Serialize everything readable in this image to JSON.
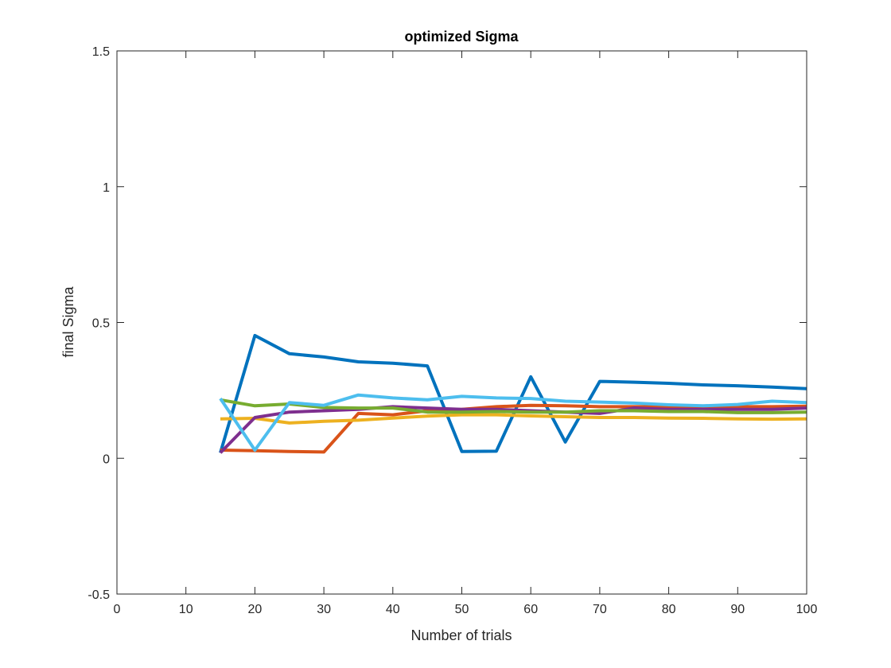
{
  "chart_data": {
    "type": "line",
    "title": "optimized Sigma",
    "xlabel": "Number of trials",
    "ylabel": "final Sigma",
    "xlim": [
      0,
      100
    ],
    "ylim": [
      -0.5,
      1.5
    ],
    "xticks": [
      0,
      10,
      20,
      30,
      40,
      50,
      60,
      70,
      80,
      90,
      100
    ],
    "yticks": [
      -0.5,
      0,
      0.5,
      1,
      1.5
    ],
    "xtick_labels": [
      "0",
      "10",
      "20",
      "30",
      "40",
      "50",
      "60",
      "70",
      "80",
      "90",
      "100"
    ],
    "ytick_labels": [
      "-0.5",
      "0",
      "0.5",
      "1",
      "1.5"
    ],
    "grid": false,
    "x": [
      15,
      20,
      25,
      30,
      35,
      40,
      45,
      50,
      55,
      60,
      65,
      70,
      75,
      80,
      85,
      90,
      95,
      100
    ],
    "series": [
      {
        "color": "#0072BD",
        "values": [
          0.02,
          0.452,
          0.385,
          0.373,
          0.355,
          0.35,
          0.34,
          0.025,
          0.026,
          0.3,
          0.06,
          0.283,
          0.28,
          0.276,
          0.27,
          0.267,
          0.262,
          0.256
        ]
      },
      {
        "color": "#D95319",
        "values": [
          0.03,
          0.028,
          0.025,
          0.023,
          0.165,
          0.16,
          0.175,
          0.18,
          0.19,
          0.195,
          0.193,
          0.19,
          0.19,
          0.19,
          0.188,
          0.19,
          0.19,
          0.192
        ]
      },
      {
        "color": "#EDB120",
        "values": [
          0.145,
          0.147,
          0.13,
          0.136,
          0.14,
          0.148,
          0.155,
          0.16,
          0.16,
          0.156,
          0.153,
          0.15,
          0.15,
          0.148,
          0.147,
          0.145,
          0.144,
          0.145
        ]
      },
      {
        "color": "#7E2F8E",
        "values": [
          0.02,
          0.15,
          0.17,
          0.175,
          0.18,
          0.19,
          0.185,
          0.18,
          0.18,
          0.175,
          0.17,
          0.165,
          0.185,
          0.18,
          0.18,
          0.18,
          0.18,
          0.185
        ]
      },
      {
        "color": "#77AC30",
        "values": [
          0.215,
          0.193,
          0.2,
          0.187,
          0.185,
          0.185,
          0.17,
          0.17,
          0.172,
          0.17,
          0.17,
          0.175,
          0.175,
          0.172,
          0.172,
          0.168,
          0.168,
          0.17
        ]
      },
      {
        "color": "#4DBEEE",
        "values": [
          0.22,
          0.03,
          0.205,
          0.195,
          0.233,
          0.222,
          0.215,
          0.228,
          0.222,
          0.22,
          0.21,
          0.207,
          0.203,
          0.197,
          0.193,
          0.198,
          0.21,
          0.205
        ]
      }
    ]
  }
}
